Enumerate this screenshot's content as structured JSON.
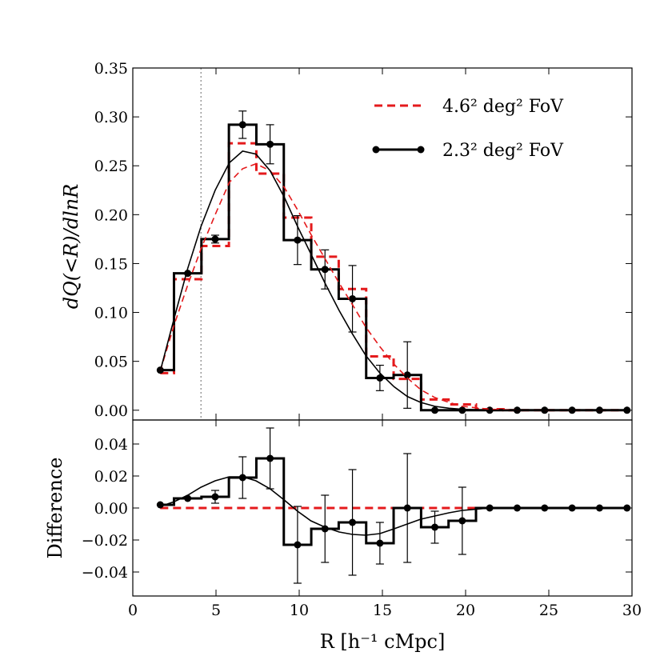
{
  "chart_data": [
    {
      "type": "line",
      "panel": "top",
      "xlabel": "R [h⁻¹ cMpc]",
      "ylabel": "dQ(<R)/dlnR",
      "xlim": [
        0,
        30
      ],
      "ylim": [
        -0.01,
        0.35
      ],
      "xticks": [
        "0",
        "5",
        "10",
        "15",
        "20",
        "25",
        "30"
      ],
      "yticks": [
        "0.00",
        "0.05",
        "0.10",
        "0.15",
        "0.20",
        "0.25",
        "0.30",
        "0.35"
      ],
      "vline_x": 4.1,
      "legend_position": "top-right",
      "series": [
        {
          "name": "4.6² deg² FoV",
          "style": "dashed-step",
          "color": "#e41a1c",
          "x": [
            1.65,
            3.3,
            4.95,
            6.6,
            8.25,
            9.9,
            11.55,
            13.2,
            14.85,
            16.5,
            18.15,
            19.8,
            21.45,
            23.1,
            24.75,
            26.4,
            28.05,
            29.7
          ],
          "values": [
            0.038,
            0.134,
            0.168,
            0.273,
            0.242,
            0.197,
            0.157,
            0.124,
            0.055,
            0.032,
            0.011,
            0.006,
            0.001,
            0.0,
            0.0,
            0.0,
            0.0,
            0.0
          ]
        },
        {
          "name": "2.3² deg² FoV",
          "style": "solid-step-markers",
          "color": "#000000",
          "x": [
            1.65,
            3.3,
            4.95,
            6.6,
            8.25,
            9.9,
            11.55,
            13.2,
            14.85,
            16.5,
            18.15,
            19.8,
            21.45,
            23.1,
            24.75,
            26.4,
            28.05,
            29.7
          ],
          "values": [
            0.041,
            0.14,
            0.175,
            0.292,
            0.272,
            0.174,
            0.144,
            0.114,
            0.033,
            0.036,
            0.0,
            0.0,
            0.0,
            0.0,
            0.0,
            0.0,
            0.0,
            0.0
          ],
          "errors": [
            0.0,
            0.0,
            0.004,
            0.014,
            0.02,
            0.025,
            0.02,
            0.034,
            0.013,
            0.034,
            0.0,
            0.0,
            0.0,
            0.0,
            0.0,
            0.0,
            0.0,
            0.0
          ]
        },
        {
          "style": "dashed-smooth",
          "color": "#e41a1c",
          "x": [
            1.65,
            2.5,
            3.3,
            4.1,
            4.95,
            5.8,
            6.6,
            7.4,
            8.25,
            9.1,
            9.9,
            10.7,
            11.55,
            12.4,
            13.2,
            14.0,
            14.85,
            15.7,
            16.5,
            17.3,
            18.15,
            19.0,
            19.8,
            21.45,
            23.1,
            29.7
          ],
          "values": [
            0.04,
            0.088,
            0.128,
            0.165,
            0.2,
            0.233,
            0.247,
            0.252,
            0.245,
            0.228,
            0.205,
            0.18,
            0.155,
            0.13,
            0.108,
            0.085,
            0.065,
            0.047,
            0.033,
            0.021,
            0.013,
            0.008,
            0.004,
            0.001,
            0.0,
            0.0
          ]
        },
        {
          "style": "solid-smooth",
          "color": "#000000",
          "x": [
            1.65,
            2.5,
            3.3,
            4.1,
            4.95,
            5.8,
            6.6,
            7.4,
            8.25,
            9.1,
            9.9,
            10.7,
            11.55,
            12.4,
            13.2,
            14.0,
            14.85,
            15.7,
            16.5,
            17.3,
            18.15,
            19.0,
            19.8,
            21.45,
            23.1,
            29.7
          ],
          "values": [
            0.04,
            0.095,
            0.145,
            0.188,
            0.225,
            0.253,
            0.265,
            0.262,
            0.245,
            0.218,
            0.188,
            0.16,
            0.13,
            0.102,
            0.078,
            0.056,
            0.038,
            0.024,
            0.014,
            0.008,
            0.004,
            0.002,
            0.001,
            0.0,
            0.0,
            0.0
          ]
        }
      ]
    },
    {
      "type": "line",
      "panel": "bottom",
      "xlabel": "R [h⁻¹ cMpc]",
      "ylabel": "Difference",
      "xlim": [
        0,
        30
      ],
      "ylim": [
        -0.055,
        0.055
      ],
      "xticks": [
        "0",
        "5",
        "10",
        "15",
        "20",
        "25",
        "30"
      ],
      "yticks": [
        "−0.04",
        "−0.02",
        "0.00",
        "0.02",
        "0.04"
      ],
      "series": [
        {
          "style": "dashed-step",
          "color": "#e41a1c",
          "x": [
            1.65,
            29.7
          ],
          "values": [
            0.0,
            0.0
          ]
        },
        {
          "style": "solid-step-markers",
          "color": "#000000",
          "x": [
            1.65,
            3.3,
            4.95,
            6.6,
            8.25,
            9.9,
            11.55,
            13.2,
            14.85,
            16.5,
            18.15,
            19.8,
            21.45,
            23.1,
            24.75,
            26.4,
            28.05,
            29.7
          ],
          "values": [
            0.002,
            0.006,
            0.007,
            0.019,
            0.031,
            -0.023,
            -0.013,
            -0.009,
            -0.022,
            0.0,
            -0.012,
            -0.008,
            0.0,
            0.0,
            0.0,
            0.0,
            0.0,
            0.0
          ],
          "errors": [
            0.0,
            0.0,
            0.004,
            0.013,
            0.019,
            0.024,
            0.021,
            0.033,
            0.013,
            0.034,
            0.01,
            0.021,
            0.0,
            0.0,
            0.0,
            0.0,
            0.0,
            0.0
          ]
        },
        {
          "style": "solid-smooth",
          "color": "#000000",
          "x": [
            1.65,
            2.5,
            3.3,
            4.1,
            4.95,
            5.8,
            6.6,
            7.4,
            8.25,
            9.1,
            9.9,
            10.7,
            11.55,
            12.4,
            13.2,
            14.0,
            14.85,
            15.7,
            16.5,
            17.3,
            18.15,
            19.0,
            19.8,
            20.6,
            21.45,
            23.1,
            29.7
          ],
          "values": [
            0.001,
            0.004,
            0.008,
            0.013,
            0.017,
            0.0195,
            0.0195,
            0.017,
            0.012,
            0.005,
            -0.002,
            -0.008,
            -0.012,
            -0.015,
            -0.0165,
            -0.017,
            -0.016,
            -0.013,
            -0.01,
            -0.007,
            -0.005,
            -0.003,
            -0.0015,
            -0.0008,
            0.0,
            0.0,
            0.0
          ]
        }
      ]
    }
  ]
}
